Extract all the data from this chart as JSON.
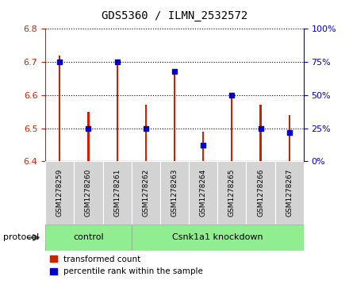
{
  "title": "GDS5360 / ILMN_2532572",
  "samples": [
    "GSM1278259",
    "GSM1278260",
    "GSM1278261",
    "GSM1278262",
    "GSM1278263",
    "GSM1278264",
    "GSM1278265",
    "GSM1278266",
    "GSM1278267"
  ],
  "transformed_count": [
    6.72,
    6.55,
    6.7,
    6.57,
    6.67,
    6.49,
    6.6,
    6.57,
    6.54
  ],
  "percentile_rank": [
    75,
    25,
    75,
    25,
    68,
    12,
    50,
    25,
    22
  ],
  "ylim_left": [
    6.4,
    6.8
  ],
  "ylim_right": [
    0,
    100
  ],
  "yticks_left": [
    6.4,
    6.5,
    6.6,
    6.7,
    6.8
  ],
  "yticks_right": [
    0,
    25,
    50,
    75,
    100
  ],
  "bar_color_red": "#cc2200",
  "bar_color_blue": "#0000cc",
  "bar_width": 0.06,
  "ctrl_group": {
    "label": "control",
    "indices": [
      0,
      1,
      2
    ]
  },
  "kd_group": {
    "label": "Csnk1a1 knockdown",
    "indices": [
      3,
      4,
      5,
      6,
      7,
      8
    ]
  },
  "group_color": "#90ee90",
  "protocol_label": "protocol",
  "legend_items": [
    {
      "color": "#cc2200",
      "label": "transformed count"
    },
    {
      "color": "#0000cc",
      "label": "percentile rank within the sample"
    }
  ],
  "title_fontsize": 10,
  "tick_fontsize": 8,
  "axis_left_color": "#cc2200",
  "axis_right_color": "#0000cc",
  "label_fontsize": 7,
  "sample_box_color": "#d3d3d3"
}
